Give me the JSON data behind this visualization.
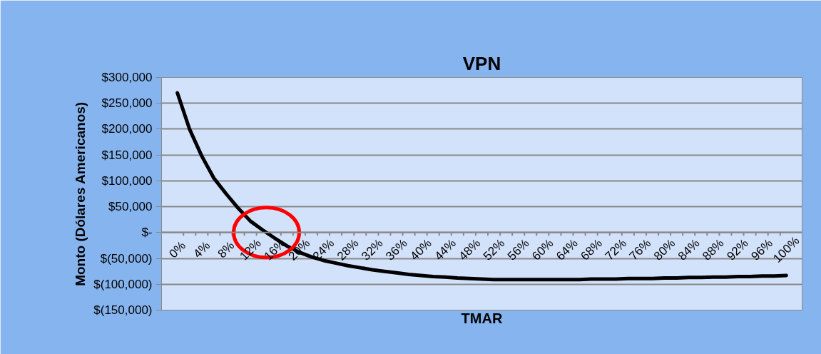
{
  "chart_data": {
    "type": "line",
    "title": "VPN",
    "xlabel": "TMAR",
    "ylabel": "Monto (Dólares Americanos)",
    "categories": [
      "0%",
      null,
      "4%",
      null,
      "8%",
      null,
      "12%",
      null,
      "16%",
      null,
      "20%",
      null,
      "24%",
      null,
      "28%",
      null,
      "32%",
      null,
      "36%",
      null,
      "40%",
      null,
      "44%",
      null,
      "48%",
      null,
      "52%",
      null,
      "56%",
      null,
      "60%",
      null,
      "64%",
      null,
      "68%",
      null,
      "72%",
      null,
      "76%",
      null,
      "80%",
      null,
      "84%",
      null,
      "88%",
      null,
      "92%",
      null,
      "96%",
      null,
      "100%"
    ],
    "series": [
      {
        "color": "#000000",
        "values": [
          270000,
          200000,
          148000,
          105000,
          75000,
          47000,
          22000,
          5000,
          -11000,
          -26000,
          -38000,
          -47000,
          -54000,
          -59000,
          -64000,
          -68000,
          -72000,
          -75000,
          -78000,
          -81000,
          -83000,
          -85000,
          -86000,
          -88000,
          -89000,
          -90000,
          -91000,
          -91000,
          -91000,
          -91000,
          -91000,
          -91000,
          -91000,
          -91000,
          -90000,
          -90000,
          -90000,
          -89000,
          -89000,
          -89000,
          -88000,
          -88000,
          -87000,
          -87000,
          -86000,
          -86000,
          -85000,
          -85000,
          -84000,
          -84000,
          -83000
        ]
      }
    ],
    "ylim": [
      -150000,
      300000
    ],
    "yticks": [
      {
        "value": -150000,
        "label": "$(150,000)"
      },
      {
        "value": -100000,
        "label": "$(100,000)"
      },
      {
        "value": -50000,
        "label": "$(50,000)"
      },
      {
        "value": 0,
        "label": "$-"
      },
      {
        "value": 50000,
        "label": "$50,000"
      },
      {
        "value": 100000,
        "label": "$100,000"
      },
      {
        "value": 150000,
        "label": "$150,000"
      },
      {
        "value": 200000,
        "label": "$200,000"
      },
      {
        "value": 250000,
        "label": "$250,000"
      },
      {
        "value": 300000,
        "label": "$300,000"
      }
    ],
    "grid": "y",
    "marker": "none",
    "line_style": "solid"
  }
}
